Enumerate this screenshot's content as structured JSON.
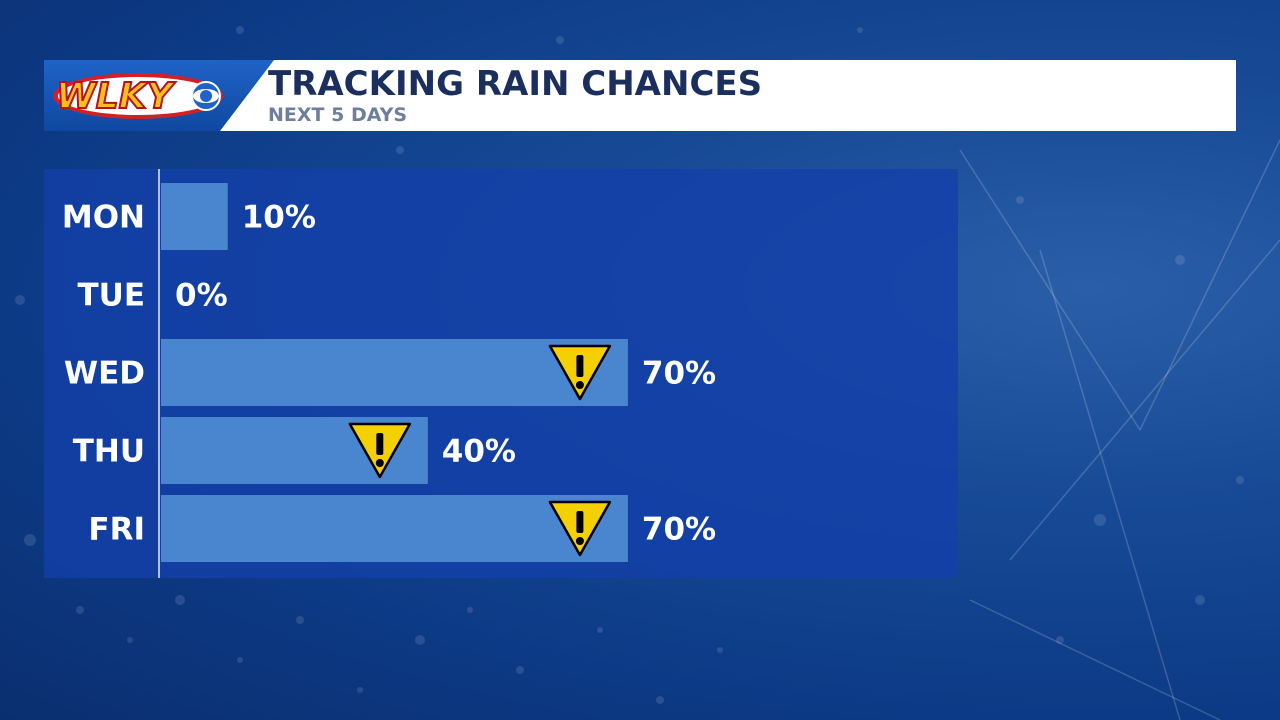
{
  "header": {
    "logo_text": "WLKY",
    "title": "TRACKING RAIN CHANCES",
    "subtitle": "NEXT 5 DAYS"
  },
  "colors": {
    "bar": "#4a86d0",
    "panel": "#1440a8",
    "warning_fill": "#f5d000",
    "title": "#1b2f5e",
    "subtitle": "#6e7f9c"
  },
  "chart_data": {
    "type": "bar",
    "orientation": "horizontal",
    "categories": [
      "MON",
      "TUE",
      "WED",
      "THU",
      "FRI"
    ],
    "values": [
      10,
      0,
      70,
      40,
      70
    ],
    "value_labels": [
      "10%",
      "0%",
      "70%",
      "40%",
      "70%"
    ],
    "warning_icon": [
      false,
      false,
      true,
      true,
      true
    ],
    "title": "TRACKING RAIN CHANCES",
    "subtitle": "NEXT 5 DAYS",
    "xlim": [
      0,
      100
    ]
  }
}
